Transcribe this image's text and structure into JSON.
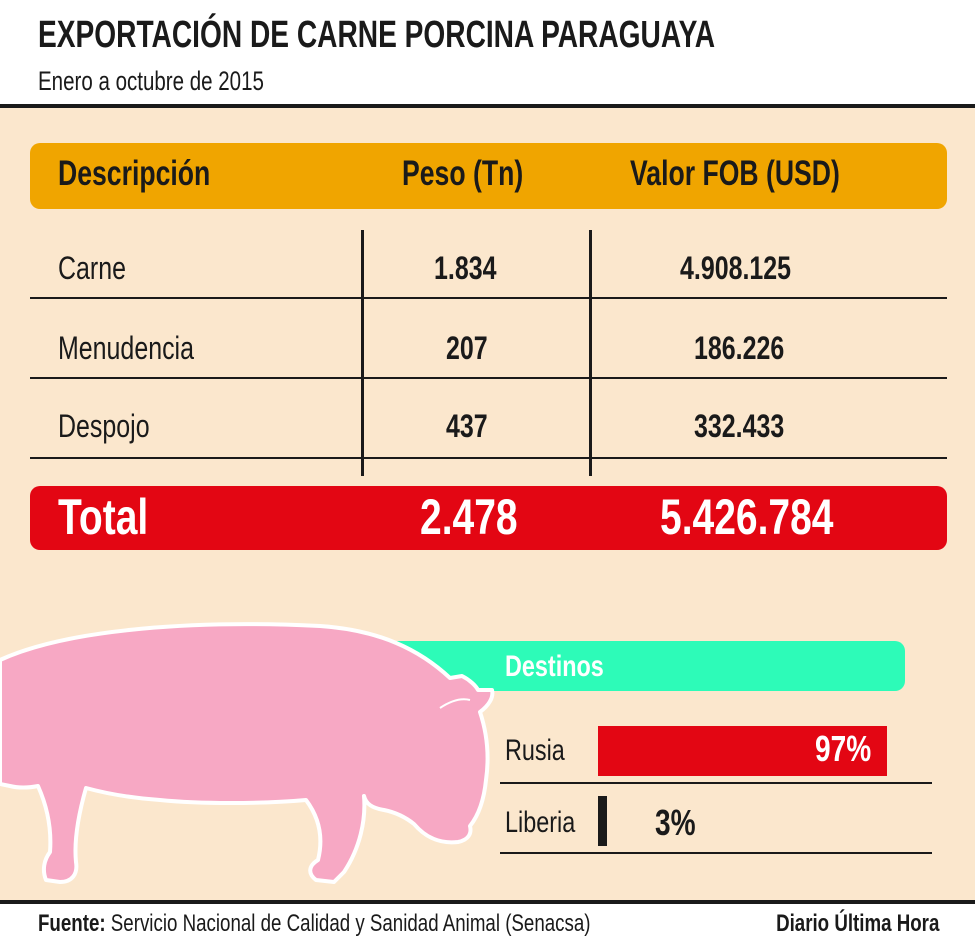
{
  "chart_data": [
    {
      "type": "table",
      "title": "EXPORTACIÓN DE CARNE PORCINA PARAGUAYA",
      "subtitle": "Enero a octubre de 2015",
      "columns": [
        "Descripción",
        "Peso (Tn)",
        "Valor FOB (USD)"
      ],
      "rows": [
        {
          "descripcion": "Carne",
          "peso": "1.834",
          "valor": "4.908.125"
        },
        {
          "descripcion": "Menudencia",
          "peso": "207",
          "valor": "186.226"
        },
        {
          "descripcion": "Despojo",
          "peso": "437",
          "valor": "332.433"
        }
      ],
      "total": {
        "label": "Total",
        "peso": "2.478",
        "valor": "5.426.784"
      }
    },
    {
      "type": "bar",
      "title": "Destinos",
      "categories": [
        "Rusia",
        "Liberia"
      ],
      "values": [
        97,
        3
      ],
      "value_labels": [
        "97%",
        "3%"
      ],
      "unit": "%",
      "xlim": [
        0,
        100
      ]
    }
  ],
  "footer": {
    "source_label": "Fuente:",
    "source_text": "Servicio Nacional de Calidad y Sanidad Animal (Senacsa)",
    "credit": "Diario Última Hora"
  },
  "colors": {
    "panel": "#fbe7cd",
    "header_bar": "#f0a500",
    "total_bar": "#e30613",
    "destinos_bar": "#2dfbb8",
    "pig": "#f7a8c4",
    "bar_fill": "#e30613"
  },
  "illustration": "pig-icon"
}
